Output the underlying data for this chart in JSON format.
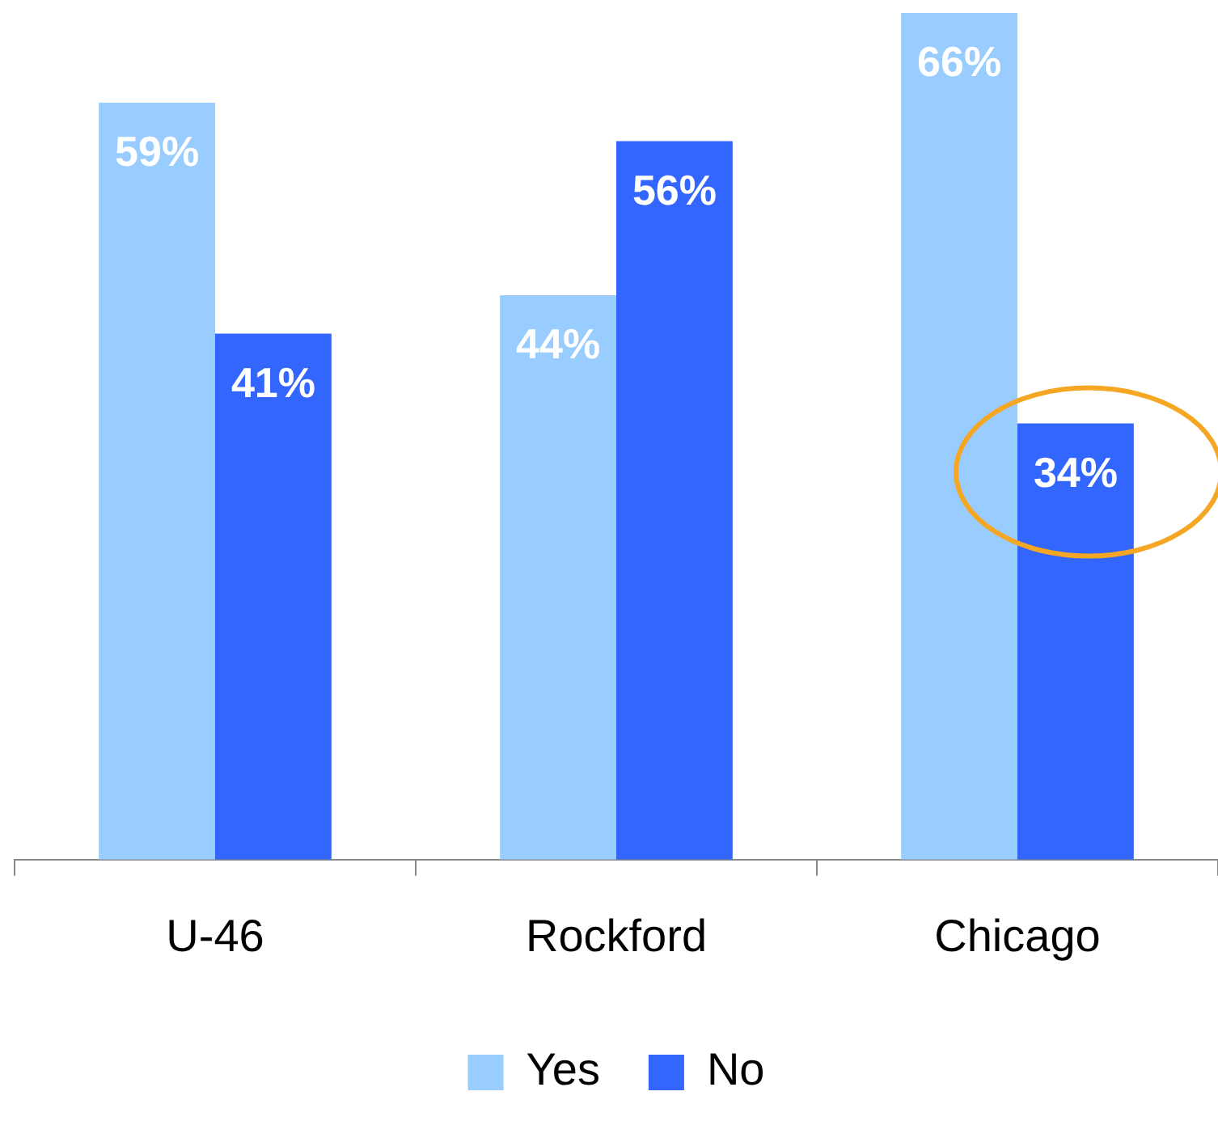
{
  "chart_data": {
    "type": "bar",
    "categories": [
      "U-46",
      "Rockford",
      "Chicago"
    ],
    "series": [
      {
        "name": "Yes",
        "color": "#99ccff",
        "values": [
          59,
          44,
          66
        ],
        "value_labels": [
          "59%",
          "44%",
          "66%"
        ]
      },
      {
        "name": "No",
        "color": "#3366ff",
        "values": [
          41,
          56,
          34
        ],
        "value_labels": [
          "41%",
          "56%",
          "34%"
        ]
      }
    ],
    "tick_labels": "x",
    "legend": "bottom"
  }
}
